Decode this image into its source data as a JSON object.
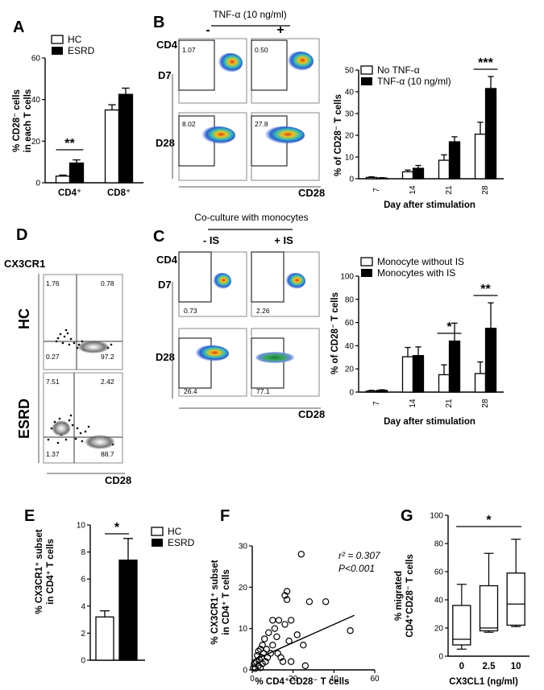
{
  "panels": {
    "A": {
      "letter": "A",
      "legend": [
        "HC",
        "ESRD"
      ],
      "ylabel_1": "% CD28⁻ cells",
      "ylabel_2": "in each T cells",
      "sig": "**"
    },
    "B": {
      "letter": "B",
      "treatment": "TNF-α (10 ng/ml)",
      "minus": "-",
      "plus": "+",
      "cd4": "CD4",
      "cd28": "CD28",
      "d7": "D7",
      "d28": "D28",
      "gate_vals": [
        "1.07",
        "0.50",
        "8.02",
        "27.8"
      ]
    },
    "Bchart": {
      "legend": [
        "No TNF-α",
        "TNF-α (10 ng/ml)"
      ],
      "sig": "***"
    },
    "C": {
      "letter": "C",
      "title": "Co-culture with monocytes",
      "minus": "- IS",
      "plus": "+ IS",
      "cd4": "CD4",
      "cd28": "CD28",
      "d7": "D7",
      "d28": "D28",
      "gate_vals": [
        "0.73",
        "2.26",
        "26.4",
        "77.1"
      ]
    },
    "Cchart": {
      "legend": [
        "Monocyte without IS",
        "Monocytes with IS"
      ],
      "sig21": "*",
      "sig28": "**"
    },
    "D": {
      "letter": "D",
      "yaxis": "CX3CR1",
      "xaxis": "CD28",
      "hc": "HC",
      "esrd": "ESRD",
      "hc_quads": [
        "1.76",
        "0.78",
        "0.27",
        "97.2"
      ],
      "esrd_quads": [
        "7.51",
        "2.42",
        "1.37",
        "88.7"
      ]
    },
    "E": {
      "letter": "E",
      "legend": [
        "HC",
        "ESRD"
      ],
      "ylabel_1": "% CX3CR1⁺ subset",
      "ylabel_2": "in CD4⁺ T cells",
      "sig": "*"
    },
    "F": {
      "letter": "F",
      "ylabel_1": "% CX3CR1⁺ subset",
      "ylabel_2": "in CD4⁺ T cells",
      "xlabel": "% CD4⁺CD28⁻ T cells",
      "r2": "r² = 0.307",
      "p": "P<0.001"
    },
    "G": {
      "letter": "G",
      "ylabel_1": "% migrated",
      "ylabel_2": "CD4⁺CD28⁻ T cells",
      "xlabel": "CX3CL1 (ng/ml)",
      "sig": "*"
    }
  },
  "chart_data": [
    {
      "id": "A",
      "type": "bar",
      "categories": [
        "CD4⁺",
        "CD8⁺"
      ],
      "series": [
        {
          "name": "HC",
          "values": [
            3.2,
            35
          ],
          "errors": [
            0.5,
            2.5
          ]
        },
        {
          "name": "ESRD",
          "values": [
            9.5,
            42.5
          ],
          "errors": [
            1.5,
            3
          ]
        }
      ],
      "xlabel": "",
      "ylabel": "% CD28⁻ cells in each T cells",
      "ylim": [
        0,
        60
      ],
      "yticks": [
        0,
        20,
        40,
        60
      ]
    },
    {
      "id": "B",
      "type": "bar",
      "categories": [
        "7",
        "14",
        "21",
        "28"
      ],
      "series": [
        {
          "name": "No TNF-α",
          "values": [
            0.6,
            3.2,
            8.5,
            20.5
          ],
          "errors": [
            0.3,
            0.8,
            2.5,
            5.5
          ]
        },
        {
          "name": "TNF-α (10 ng/ml)",
          "values": [
            0.3,
            4.8,
            17,
            41.5
          ],
          "errors": [
            0.2,
            1.3,
            2.3,
            5.5
          ]
        }
      ],
      "xlabel": "Day after stimulation",
      "ylabel": "% of CD28⁻ T cells",
      "ylim": [
        0,
        50
      ],
      "yticks": [
        0,
        10,
        20,
        30,
        40,
        50
      ]
    },
    {
      "id": "C",
      "type": "bar",
      "categories": [
        "7",
        "14",
        "21",
        "28"
      ],
      "series": [
        {
          "name": "Monocyte without IS",
          "values": [
            1,
            30.5,
            15,
            16
          ],
          "errors": [
            0.5,
            8,
            8.5,
            10
          ]
        },
        {
          "name": "Monocytes with IS",
          "values": [
            1.5,
            31.5,
            44,
            55
          ],
          "errors": [
            0.5,
            7.5,
            15.5,
            22
          ]
        }
      ],
      "xlabel": "Day after stimulation",
      "ylabel": "% of CD28⁻ T cells",
      "ylim": [
        0,
        100
      ],
      "yticks": [
        0,
        20,
        40,
        60,
        80,
        100
      ]
    },
    {
      "id": "E",
      "type": "bar",
      "categories": [
        "HC",
        "ESRD"
      ],
      "values": [
        3.2,
        7.4
      ],
      "errors": [
        0.45,
        1.6
      ],
      "xlabel": "",
      "ylabel": "% CX3CR1⁺ subset in CD4⁺ T cells",
      "ylim": [
        0,
        10
      ],
      "yticks": [
        0,
        2,
        4,
        6,
        8,
        10
      ]
    },
    {
      "id": "F",
      "type": "scatter",
      "x": [
        0.5,
        1,
        1.5,
        2,
        2.5,
        3,
        3,
        3.5,
        4,
        4,
        4.5,
        5,
        5,
        5.5,
        6,
        6.5,
        7,
        7.5,
        8,
        9,
        10,
        10,
        11,
        12,
        12.5,
        13,
        14,
        15,
        16,
        16,
        17,
        17,
        18,
        19,
        19,
        22,
        24,
        25,
        26,
        28,
        36,
        48
      ],
      "y": [
        0.5,
        1.5,
        0.3,
        2,
        3.5,
        1,
        4.5,
        2.5,
        0.5,
        5,
        3,
        6,
        1.5,
        4,
        7.5,
        2,
        5,
        3,
        9,
        4,
        6,
        12,
        10,
        8,
        4,
        12,
        3,
        2,
        11,
        18,
        17,
        19,
        7,
        12,
        2,
        8.5,
        28,
        6,
        1,
        16.5,
        16.5,
        9.5
      ],
      "trend": {
        "x": [
          0,
          50
        ],
        "y": [
          2.2,
          13.2
        ]
      },
      "r2": 0.307,
      "p": "<0.001",
      "xlabel": "% CD4⁺CD28⁻ T cells",
      "ylabel": "% CX3CR1⁺ subset in CD4⁺ T cells",
      "xlim": [
        0,
        60
      ],
      "ylim": [
        0,
        30
      ],
      "xticks": [
        0,
        20,
        40,
        60
      ],
      "yticks": [
        0,
        10,
        20,
        30
      ]
    },
    {
      "id": "G",
      "type": "box",
      "categories": [
        "0",
        "2.5",
        "10"
      ],
      "boxes": [
        {
          "min": 5,
          "q1": 8,
          "median": 12,
          "q3": 36,
          "max": 51
        },
        {
          "min": 17,
          "q1": 18,
          "median": 20,
          "q3": 50,
          "max": 73
        },
        {
          "min": 21,
          "q1": 22,
          "median": 37,
          "q3": 59,
          "max": 83
        }
      ],
      "xlabel": "CX3CL1 (ng/ml)",
      "ylabel": "% migrated CD4⁺CD28⁻ T cells",
      "ylim": [
        0,
        100
      ],
      "yticks": [
        0,
        20,
        40,
        60,
        80,
        100
      ]
    }
  ]
}
